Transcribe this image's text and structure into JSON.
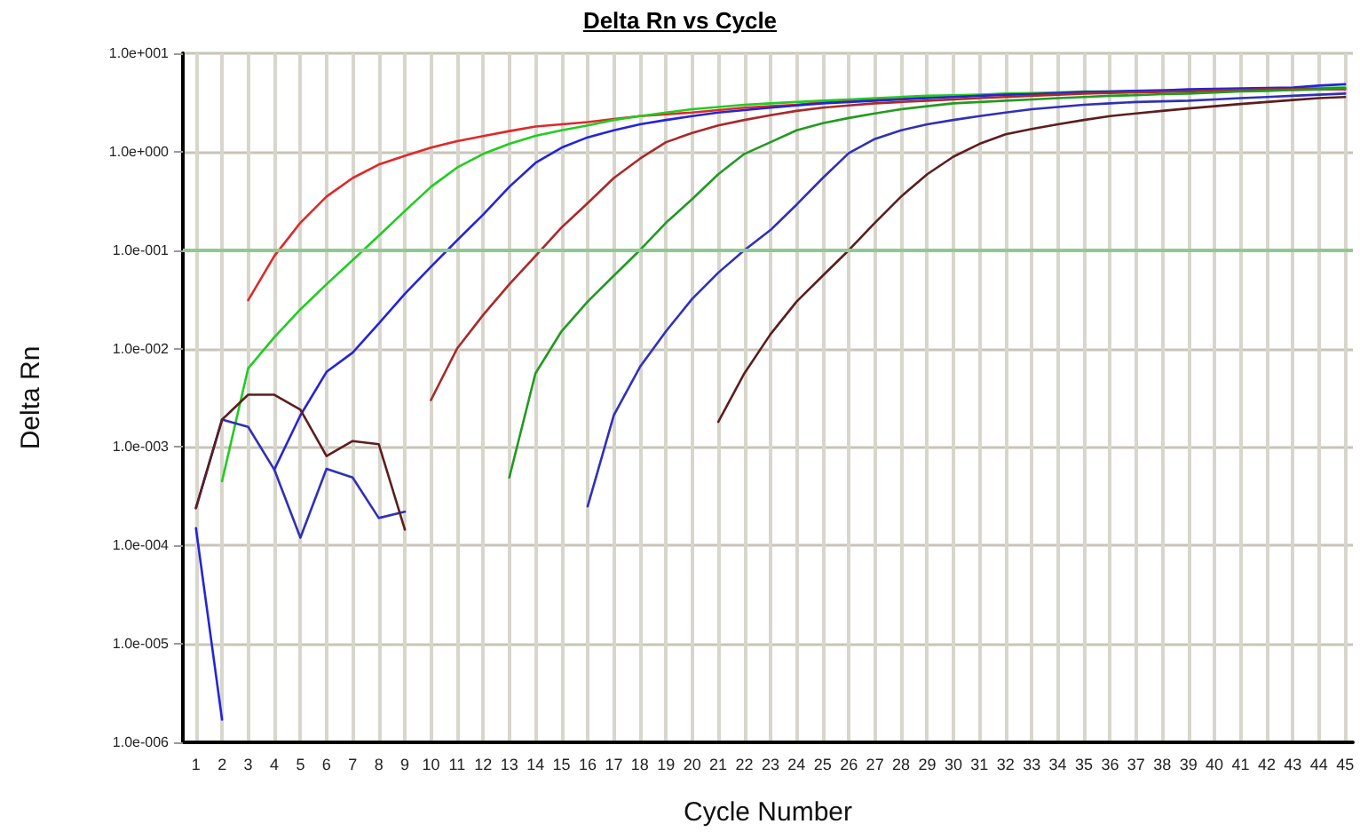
{
  "chart_data": {
    "type": "line",
    "title": "Delta Rn vs Cycle",
    "xlabel": "Cycle Number",
    "ylabel": "Delta Rn",
    "log": "y",
    "grid": true,
    "marker": "none",
    "line_style": "solid",
    "x": [
      1,
      2,
      3,
      4,
      5,
      6,
      7,
      8,
      9,
      10,
      11,
      12,
      13,
      14,
      15,
      16,
      17,
      18,
      19,
      20,
      21,
      22,
      23,
      24,
      25,
      26,
      27,
      28,
      29,
      30,
      31,
      32,
      33,
      34,
      35,
      36,
      37,
      38,
      39,
      40,
      41,
      42,
      43,
      44,
      45
    ],
    "xlim": [
      0.5,
      45.3
    ],
    "xticks": [
      1,
      2,
      3,
      4,
      5,
      6,
      7,
      8,
      9,
      10,
      11,
      12,
      13,
      14,
      15,
      16,
      17,
      18,
      19,
      20,
      21,
      22,
      23,
      24,
      25,
      26,
      27,
      28,
      29,
      30,
      31,
      32,
      33,
      34,
      35,
      36,
      37,
      38,
      39,
      40,
      41,
      42,
      43,
      44,
      45
    ],
    "ylim": [
      1e-06,
      10
    ],
    "yticks": [
      {
        "value": 1e-06,
        "label": "1.0e-006"
      },
      {
        "value": 1e-05,
        "label": "1.0e-005"
      },
      {
        "value": 0.0001,
        "label": "1.0e-004"
      },
      {
        "value": 0.001,
        "label": "1.0e-003"
      },
      {
        "value": 0.01,
        "label": "1.0e-002"
      },
      {
        "value": 0.1,
        "label": "1.0e-001"
      },
      {
        "value": 1,
        "label": "1.0e+000"
      },
      {
        "value": 10,
        "label": "1.0e+001"
      }
    ],
    "ref_lines": [
      {
        "axis": "y",
        "value": 0.1,
        "color": "#8fc98f"
      }
    ],
    "series": [
      {
        "color": "#e02828",
        "values": [
          null,
          null,
          0.031,
          0.087,
          0.19,
          0.35,
          0.54,
          0.74,
          0.91,
          1.1,
          1.28,
          1.44,
          1.62,
          1.8,
          1.9,
          2.0,
          2.15,
          2.3,
          2.4,
          2.5,
          2.65,
          2.8,
          2.9,
          3.0,
          3.2,
          3.3,
          3.4,
          3.5,
          3.6,
          3.7,
          3.75,
          3.8,
          3.85,
          3.9,
          4.0,
          4.05,
          4.1,
          4.1,
          4.15,
          4.2,
          4.2,
          4.25,
          4.25,
          4.3,
          4.3
        ]
      },
      {
        "color": "#22cc22",
        "values": [
          null,
          0.00045,
          0.0063,
          0.013,
          0.025,
          0.045,
          0.079,
          0.14,
          0.25,
          0.44,
          0.69,
          0.95,
          1.2,
          1.45,
          1.65,
          1.85,
          2.1,
          2.3,
          2.5,
          2.7,
          2.85,
          3.0,
          3.1,
          3.2,
          3.3,
          3.4,
          3.5,
          3.6,
          3.7,
          3.75,
          3.8,
          3.9,
          3.95,
          4.0,
          4.1,
          4.1,
          4.15,
          4.2,
          4.25,
          4.3,
          4.3,
          4.35,
          4.4,
          4.45,
          4.5
        ]
      },
      {
        "color": "#2424d8",
        "values": [
          0.00015,
          1.7e-06,
          null,
          0.00059,
          0.0021,
          0.0058,
          0.0091,
          0.018,
          0.036,
          0.068,
          0.126,
          0.23,
          0.44,
          0.77,
          1.1,
          1.4,
          1.65,
          1.9,
          2.1,
          2.3,
          2.5,
          2.65,
          2.8,
          2.95,
          3.1,
          3.2,
          3.3,
          3.4,
          3.5,
          3.6,
          3.7,
          3.8,
          3.85,
          3.95,
          4.05,
          4.1,
          4.15,
          4.2,
          4.3,
          4.35,
          4.4,
          4.45,
          4.5,
          4.7,
          4.85
        ]
      },
      {
        "color": "#a82a2a",
        "values": [
          null,
          null,
          null,
          null,
          null,
          null,
          null,
          null,
          null,
          0.003,
          0.01,
          0.022,
          0.045,
          0.087,
          0.17,
          0.3,
          0.54,
          0.85,
          1.25,
          1.55,
          1.85,
          2.1,
          2.35,
          2.6,
          2.8,
          2.95,
          3.1,
          3.2,
          3.3,
          3.4,
          3.5,
          3.6,
          3.7,
          3.8,
          3.9,
          3.95,
          4.0,
          4.05,
          4.1,
          4.2,
          4.25,
          4.3,
          4.3,
          4.35,
          4.4
        ]
      },
      {
        "color": "#229a22",
        "values": [
          null,
          null,
          null,
          null,
          null,
          null,
          null,
          null,
          null,
          null,
          null,
          null,
          0.00049,
          0.0056,
          0.015,
          0.03,
          0.055,
          0.1,
          0.19,
          0.33,
          0.59,
          0.95,
          1.25,
          1.65,
          1.95,
          2.2,
          2.45,
          2.7,
          2.9,
          3.1,
          3.2,
          3.3,
          3.4,
          3.5,
          3.6,
          3.7,
          3.75,
          3.85,
          3.9,
          4.0,
          4.1,
          4.15,
          4.25,
          4.3,
          4.4
        ]
      },
      {
        "color": "#3030b8",
        "values": [
          0.00024,
          0.0019,
          0.0016,
          0.00059,
          0.00012,
          0.0006,
          0.00049,
          0.00019,
          0.00022,
          null,
          null,
          null,
          null,
          null,
          null,
          0.00025,
          0.0021,
          0.0065,
          0.015,
          0.032,
          0.059,
          0.1,
          0.16,
          0.29,
          0.54,
          0.97,
          1.35,
          1.65,
          1.9,
          2.1,
          2.3,
          2.5,
          2.7,
          2.85,
          3.0,
          3.1,
          3.2,
          3.25,
          3.3,
          3.4,
          3.5,
          3.6,
          3.7,
          3.8,
          3.9
        ]
      },
      {
        "color": "#5c1e1e",
        "values": [
          0.00024,
          0.0019,
          0.0034,
          0.0034,
          0.0024,
          0.00081,
          0.00115,
          0.00107,
          0.000145,
          null,
          null,
          null,
          null,
          null,
          null,
          null,
          null,
          null,
          null,
          null,
          0.0018,
          0.0056,
          0.014,
          0.03,
          0.055,
          0.1,
          0.19,
          0.35,
          0.59,
          0.89,
          1.2,
          1.5,
          1.7,
          1.9,
          2.1,
          2.3,
          2.45,
          2.6,
          2.75,
          2.9,
          3.05,
          3.2,
          3.35,
          3.5,
          3.6
        ]
      }
    ]
  }
}
